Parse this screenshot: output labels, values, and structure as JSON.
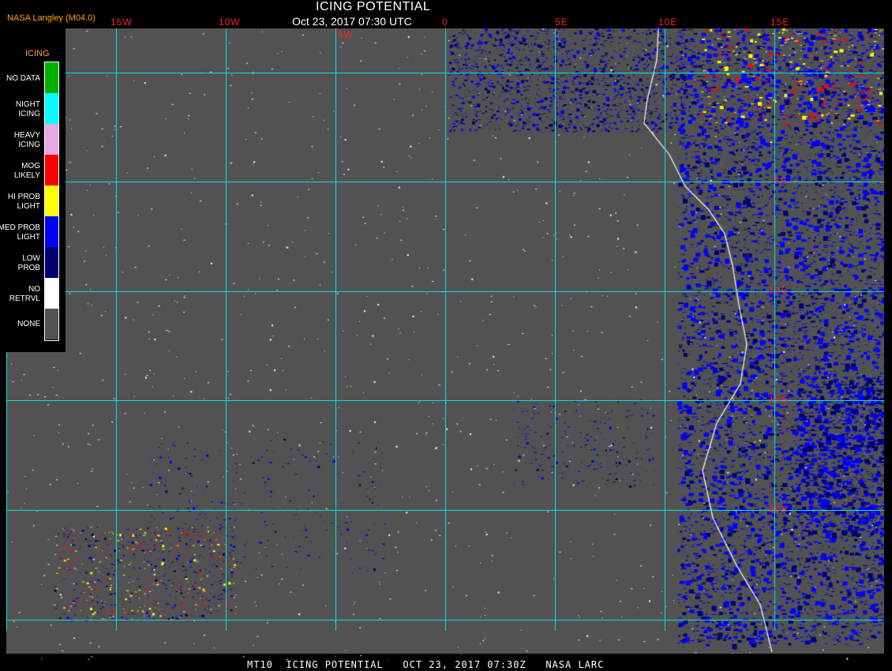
{
  "header": {
    "title": "ICING POTENTIAL",
    "subtitle": "Oct 23, 2017 07:30 UTC",
    "credit": "NASA Langley (M04.0)"
  },
  "map": {
    "longitude_labels": [
      "15W",
      "10W",
      "5W",
      "0",
      "5E",
      "10E",
      "15E"
    ],
    "latitude_labels": [
      "5S",
      "10S",
      "15S",
      "20S"
    ],
    "background_color": "#525252",
    "grid_color": "#00e0e8",
    "label_color": "#ff2020"
  },
  "legend": {
    "title": "ICING",
    "items": [
      {
        "label": "NO DATA",
        "color": "#00b000"
      },
      {
        "label": "NIGHT\nICING",
        "color": "#00ffff"
      },
      {
        "label": "HEAVY\nICING",
        "color": "#e8a8e0"
      },
      {
        "label": "MOG\nLIKELY",
        "color": "#ff0000"
      },
      {
        "label": "HI PROB\nLIGHT",
        "color": "#ffff00"
      },
      {
        "label": "MED PROB\nLIGHT",
        "color": "#0000ff"
      },
      {
        "label": "LOW\nPROB",
        "color": "#000070"
      },
      {
        "label": "NO\nRETRVL",
        "color": "#ffffff"
      },
      {
        "label": "NONE",
        "color": "#525252"
      }
    ]
  },
  "footer": {
    "text": "MT10  ICING POTENTIAL   OCT 23, 2017 07:30Z   NASA LARC"
  }
}
